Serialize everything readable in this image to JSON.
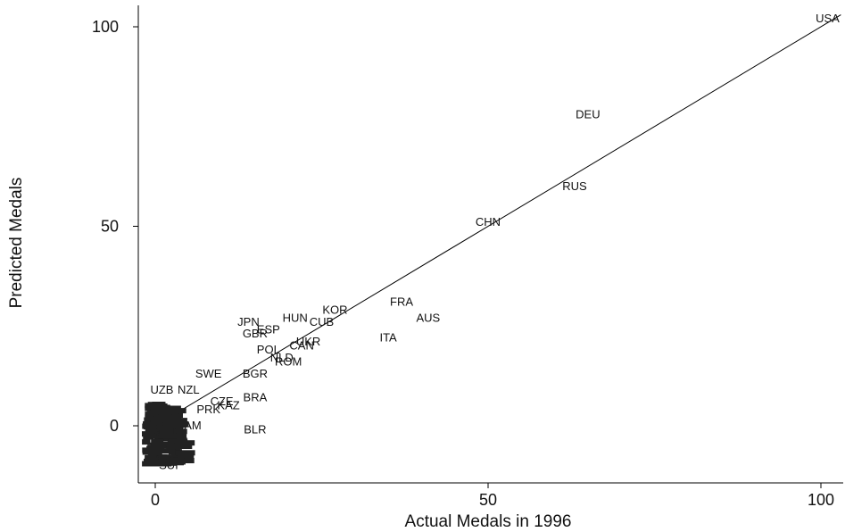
{
  "chart_data": {
    "type": "scatter",
    "title": "",
    "xlabel": "Actual Medals in 1996",
    "ylabel": "Predicted Medals",
    "xlim": [
      -3,
      103
    ],
    "ylim": [
      -14,
      106
    ],
    "xticks": [
      0,
      50,
      100
    ],
    "yticks": [
      0,
      50,
      100
    ],
    "grid": false,
    "legend": "none",
    "fit_line": [
      [
        -1,
        -1
      ],
      [
        103,
        103
      ]
    ],
    "points": [
      {
        "label": "USA",
        "x": 101,
        "y": 102
      },
      {
        "label": "DEU",
        "x": 65,
        "y": 78
      },
      {
        "label": "RUS",
        "x": 63,
        "y": 60
      },
      {
        "label": "CHN",
        "x": 50,
        "y": 51
      },
      {
        "label": "FRA",
        "x": 37,
        "y": 31
      },
      {
        "label": "AUS",
        "x": 41,
        "y": 27
      },
      {
        "label": "ITA",
        "x": 35,
        "y": 22
      },
      {
        "label": "KOR",
        "x": 27,
        "y": 29
      },
      {
        "label": "CUB",
        "x": 25,
        "y": 26
      },
      {
        "label": "HUN",
        "x": 21,
        "y": 27
      },
      {
        "label": "JPN",
        "x": 14,
        "y": 26
      },
      {
        "label": "ESP",
        "x": 17,
        "y": 24
      },
      {
        "label": "GBR",
        "x": 15,
        "y": 23
      },
      {
        "label": "UKR",
        "x": 23,
        "y": 21
      },
      {
        "label": "CAN",
        "x": 22,
        "y": 20
      },
      {
        "label": "POL",
        "x": 17,
        "y": 19
      },
      {
        "label": "NLD",
        "x": 19,
        "y": 17
      },
      {
        "label": "ROM",
        "x": 20,
        "y": 16
      },
      {
        "label": "SWE",
        "x": 8,
        "y": 13
      },
      {
        "label": "BGR",
        "x": 15,
        "y": 13
      },
      {
        "label": "BRA",
        "x": 15,
        "y": 7
      },
      {
        "label": "NZL",
        "x": 5,
        "y": 9
      },
      {
        "label": "UZB",
        "x": 1,
        "y": 9
      },
      {
        "label": "CZE",
        "x": 10,
        "y": 6
      },
      {
        "label": "KAZ",
        "x": 11,
        "y": 5
      },
      {
        "label": "PRK",
        "x": 8,
        "y": 4
      },
      {
        "label": "NAM",
        "x": 5,
        "y": 0
      },
      {
        "label": "BLR",
        "x": 15,
        "y": -1
      },
      {
        "label": "SUI",
        "x": 2,
        "y": -10
      }
    ]
  }
}
